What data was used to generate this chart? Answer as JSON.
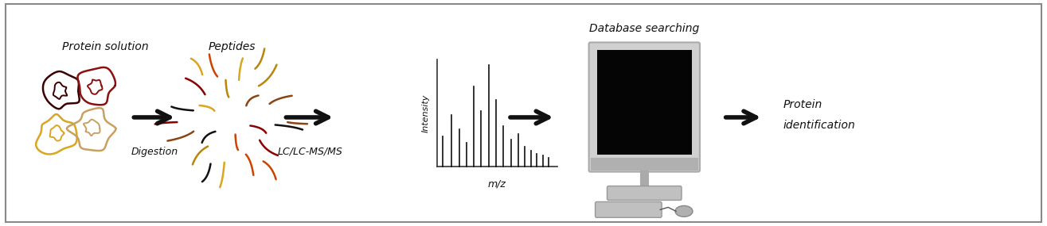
{
  "background_color": "#ffffff",
  "border_color": "#888888",
  "figure_width": 13.15,
  "figure_height": 2.85,
  "dpi": 100,
  "labels": {
    "protein_solution": "Protein solution",
    "peptides": "Peptides",
    "digestion": "Digestion",
    "lcms": "LC/LC-MS/MS",
    "mz": "m/z",
    "intensity": "Intensity",
    "database": "Database searching",
    "protein_id_1": "Protein",
    "protein_id_2": "identification"
  },
  "font_size_label": 10,
  "font_size_small": 9,
  "text_color": "#111111",
  "protein_colors": [
    "#3d0000",
    "#8B0000",
    "#cc2200",
    "#DAA520",
    "#c8a060"
  ],
  "peptide_colors": [
    "#111111",
    "#8B0000",
    "#cc4400",
    "#DAA520",
    "#b8860b",
    "#8B4513"
  ]
}
